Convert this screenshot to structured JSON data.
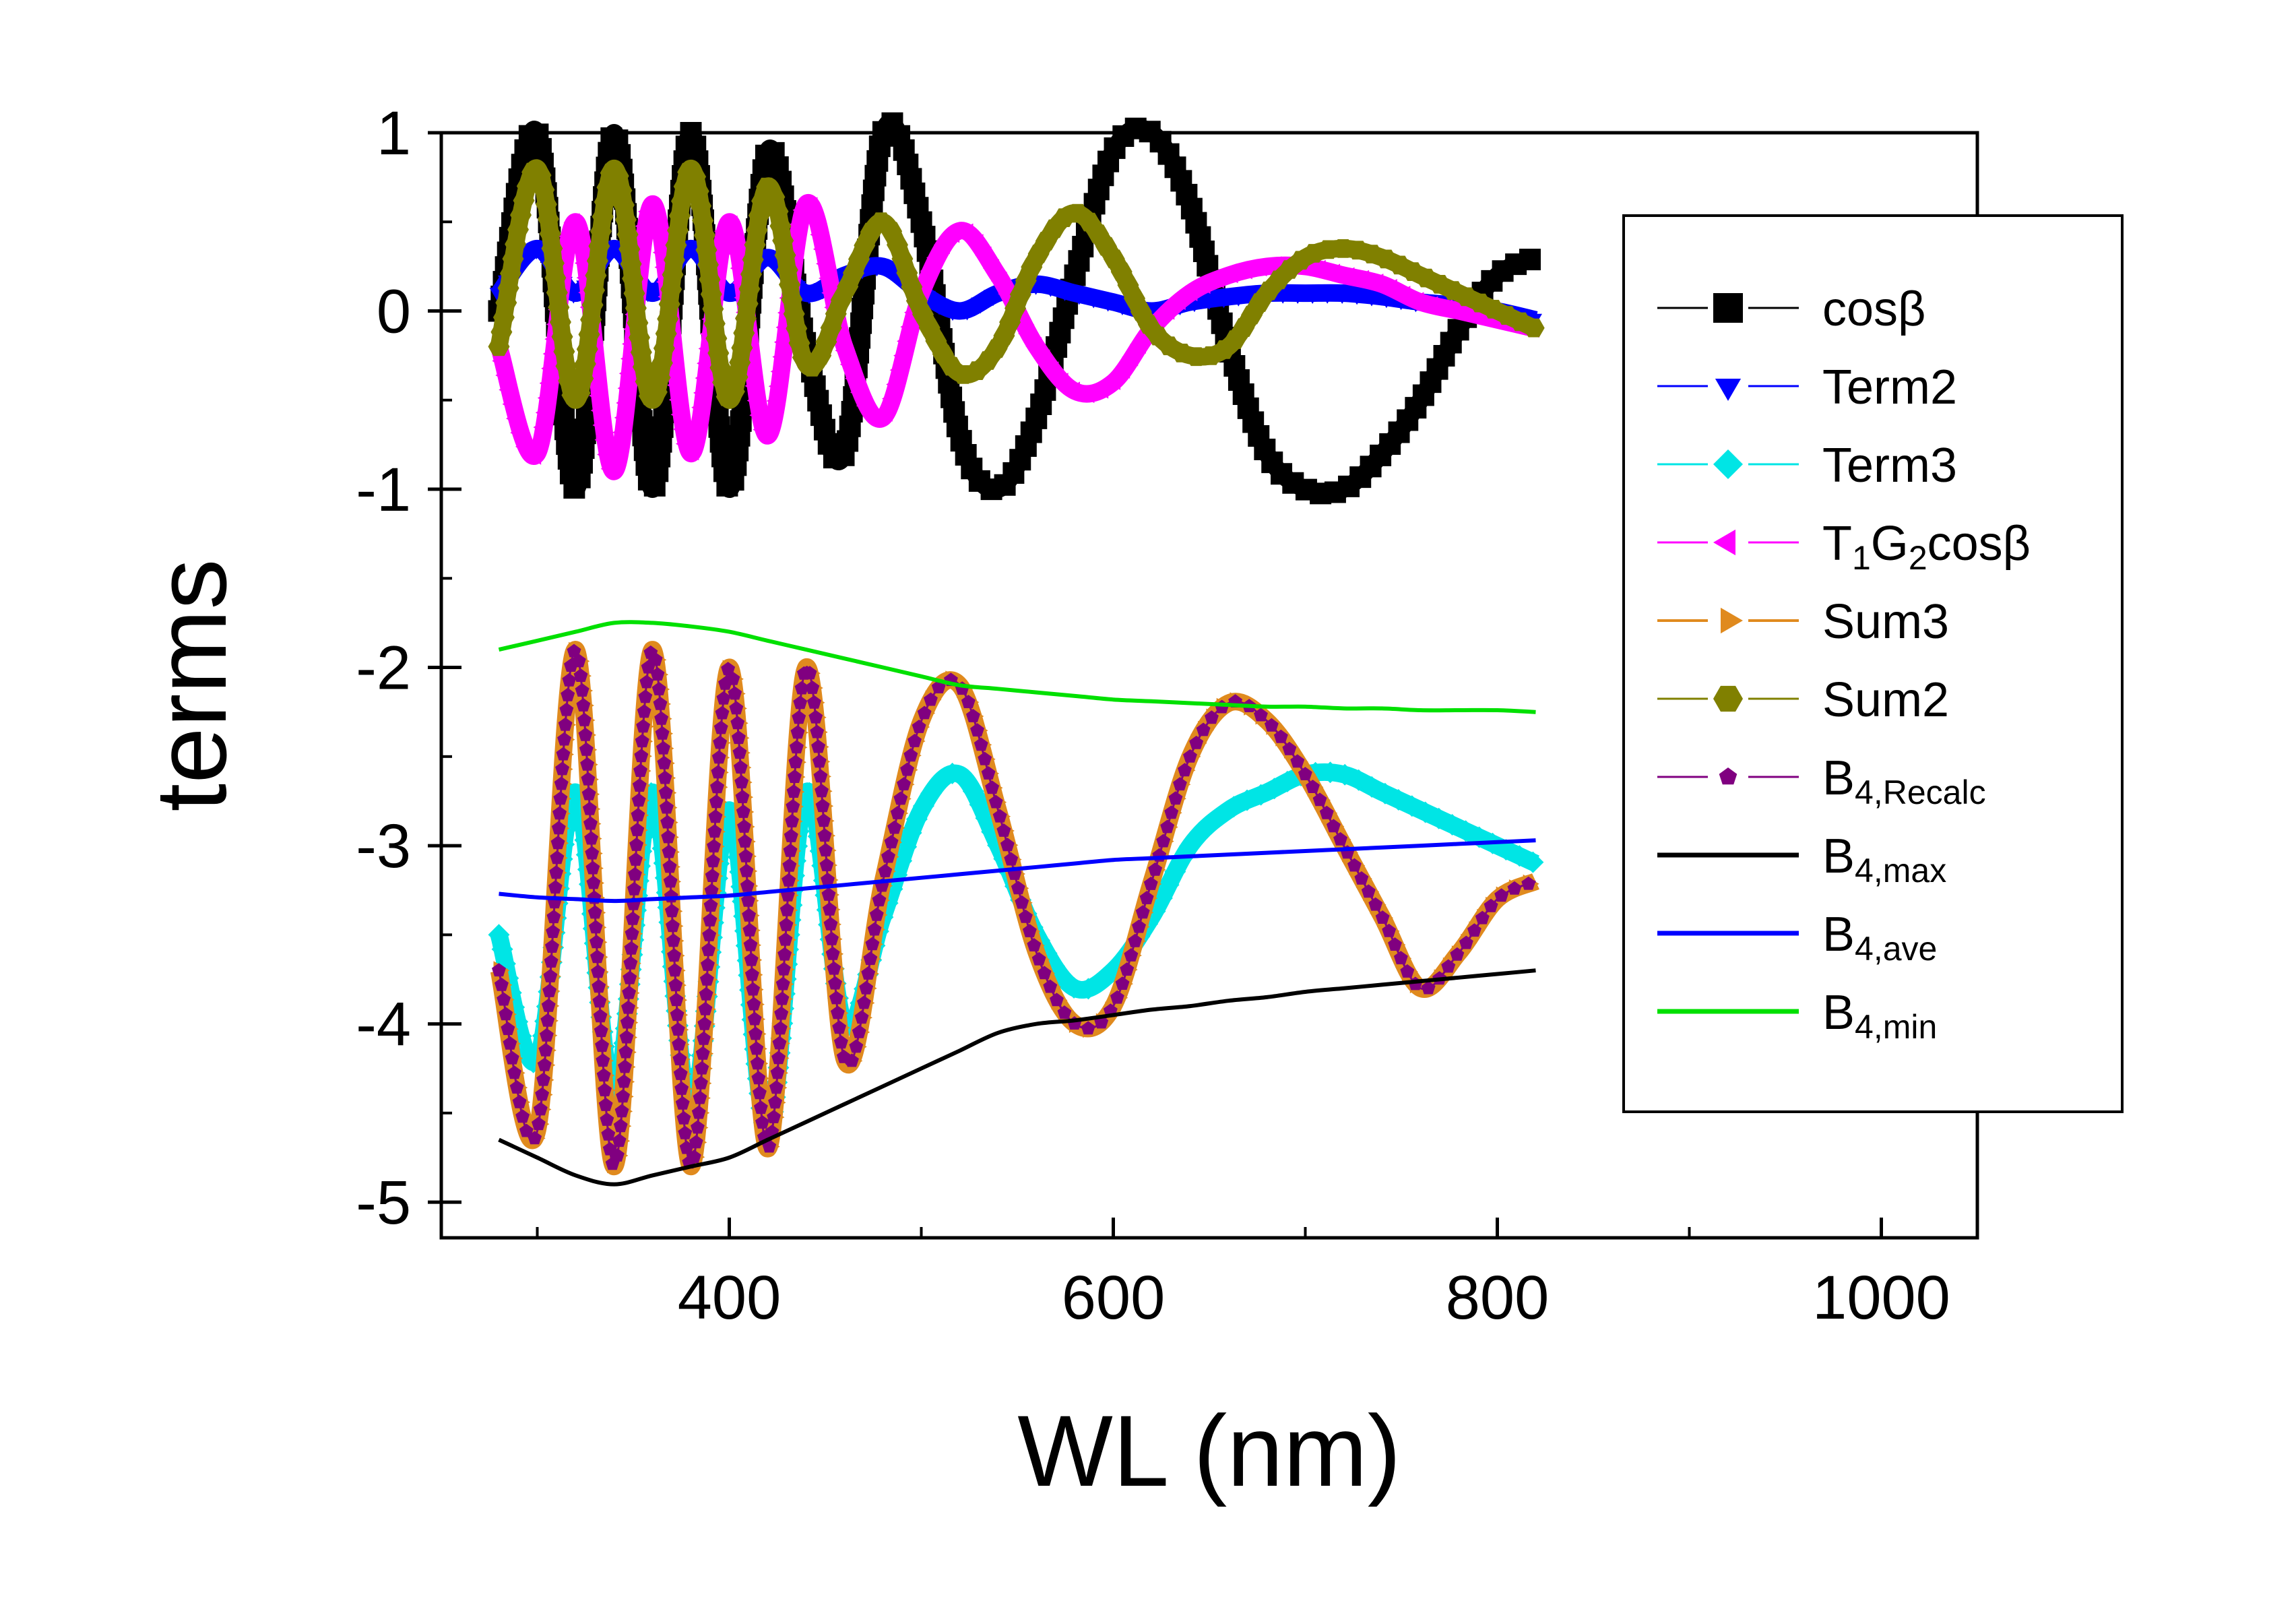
{
  "chart_data": {
    "type": "line",
    "xlabel": "WL  (nm)",
    "ylabel": "terms",
    "xlim": [
      250,
      1050
    ],
    "ylim": [
      -5.2,
      1.0
    ],
    "x_ticks": [
      400,
      600,
      800,
      1000
    ],
    "x_tick_labels": [
      "400",
      "600",
      "800",
      "1000"
    ],
    "y_ticks": [
      1,
      0,
      -1,
      -2,
      -3,
      -4,
      -5
    ],
    "y_tick_labels": [
      "1",
      "0",
      "-1",
      "-2",
      "-3",
      "-4",
      "-5"
    ],
    "grid": false,
    "legend_position": "right",
    "x_points": [
      280,
      300,
      320,
      340,
      360,
      380,
      400,
      420,
      440,
      460,
      480,
      500,
      520,
      540,
      560,
      580,
      600,
      620,
      640,
      660,
      680,
      700,
      720,
      740,
      760,
      780,
      800,
      820
    ],
    "series": [
      {
        "name": "cosβ",
        "label_main": "cosβ",
        "label_sub": "",
        "label_tail": "",
        "color": "#000000",
        "marker": "square",
        "line": "dash",
        "thick": true,
        "values": [
          0.0,
          1.0,
          -1.0,
          1.0,
          -1.0,
          1.0,
          -1.0,
          0.9,
          -0.2,
          -0.8,
          1.0,
          0.5,
          -0.7,
          -1.0,
          -0.6,
          0.2,
          0.9,
          1.0,
          0.6,
          -0.2,
          -0.8,
          -1.0,
          -1.0,
          -0.8,
          -0.5,
          -0.1,
          0.2,
          0.3
        ]
      },
      {
        "name": "Term2",
        "label_main": "Term2",
        "label_sub": "",
        "label_tail": "",
        "color": "#0000ff",
        "marker": "triangle-down",
        "line": "dash",
        "thick": true,
        "values": [
          0.1,
          0.35,
          0.1,
          0.35,
          0.1,
          0.35,
          0.1,
          0.3,
          0.1,
          0.2,
          0.25,
          0.1,
          0.0,
          0.1,
          0.15,
          0.1,
          0.05,
          0.0,
          0.05,
          0.08,
          0.1,
          0.1,
          0.1,
          0.08,
          0.05,
          0.03,
          0.0,
          -0.05
        ]
      },
      {
        "name": "Term3",
        "label_main": "Term3",
        "label_sub": "",
        "label_tail": "",
        "color": "#00e5e5",
        "marker": "diamond",
        "line": "dash",
        "thick": true,
        "values": [
          -3.5,
          -4.2,
          -2.7,
          -4.4,
          -2.7,
          -4.5,
          -2.8,
          -4.6,
          -2.7,
          -4.0,
          -3.4,
          -2.8,
          -2.6,
          -3.0,
          -3.5,
          -3.8,
          -3.7,
          -3.4,
          -3.0,
          -2.8,
          -2.7,
          -2.6,
          -2.6,
          -2.7,
          -2.8,
          -2.9,
          -3.0,
          -3.1
        ]
      },
      {
        "name": "T1G2cosβ",
        "label_main": "T",
        "label_sub": "1",
        "label_tail": "G",
        "label_sub2": "2",
        "label_tail2": "cosβ",
        "color": "#ff00ff",
        "marker": "triangle-left",
        "line": "dash",
        "thick": true,
        "values": [
          -0.2,
          -0.8,
          0.5,
          -0.9,
          0.6,
          -0.8,
          0.5,
          -0.7,
          0.6,
          -0.2,
          -0.6,
          0.1,
          0.45,
          0.2,
          -0.2,
          -0.45,
          -0.4,
          -0.1,
          0.1,
          0.2,
          0.25,
          0.25,
          0.2,
          0.15,
          0.05,
          0.0,
          -0.05,
          -0.1
        ]
      },
      {
        "name": "Sum3",
        "label_main": "Sum3",
        "label_sub": "",
        "label_tail": "",
        "color": "#e08a1e",
        "marker": "triangle-right",
        "line": "solid",
        "thick": true,
        "values": [
          -3.7,
          -4.6,
          -1.9,
          -4.8,
          -1.9,
          -4.8,
          -2.0,
          -4.7,
          -2.0,
          -4.2,
          -3.2,
          -2.3,
          -2.1,
          -2.8,
          -3.6,
          -4.0,
          -3.9,
          -3.2,
          -2.5,
          -2.2,
          -2.3,
          -2.6,
          -3.0,
          -3.4,
          -3.8,
          -3.6,
          -3.3,
          -3.2
        ]
      },
      {
        "name": "Sum2",
        "label_main": "Sum2",
        "label_sub": "",
        "label_tail": "",
        "color": "#808000",
        "marker": "hexagon",
        "line": "solid",
        "thick": true,
        "values": [
          -0.2,
          0.8,
          -0.5,
          0.8,
          -0.5,
          0.8,
          -0.5,
          0.7,
          -0.3,
          0.1,
          0.5,
          0.0,
          -0.35,
          -0.2,
          0.3,
          0.55,
          0.3,
          -0.1,
          -0.25,
          -0.2,
          0.1,
          0.3,
          0.35,
          0.3,
          0.2,
          0.1,
          0.0,
          -0.1
        ]
      },
      {
        "name": "B4,Recalc",
        "label_main": "B",
        "label_sub": "4,Recalc",
        "label_tail": "",
        "color": "#800080",
        "marker": "pentagon",
        "line": "dash",
        "thick": false,
        "values": [
          -3.7,
          -4.6,
          -1.9,
          -4.8,
          -1.9,
          -4.8,
          -2.0,
          -4.7,
          -2.0,
          -4.2,
          -3.2,
          -2.3,
          -2.1,
          -2.8,
          -3.6,
          -4.0,
          -3.9,
          -3.2,
          -2.5,
          -2.2,
          -2.3,
          -2.6,
          -3.0,
          -3.4,
          -3.8,
          -3.6,
          -3.3,
          -3.2
        ]
      },
      {
        "name": "B4,max",
        "label_main": "B",
        "label_sub": "4,max",
        "label_tail": "",
        "color": "#000000",
        "marker": "none",
        "line": "solid",
        "thick": false,
        "values": [
          -4.65,
          -4.75,
          -4.85,
          -4.9,
          -4.85,
          -4.8,
          -4.75,
          -4.65,
          -4.55,
          -4.45,
          -4.35,
          -4.25,
          -4.15,
          -4.05,
          -4.0,
          -3.98,
          -3.95,
          -3.92,
          -3.9,
          -3.87,
          -3.85,
          -3.82,
          -3.8,
          -3.78,
          -3.76,
          -3.74,
          -3.72,
          -3.7
        ]
      },
      {
        "name": "B4,ave",
        "label_main": "B",
        "label_sub": "4,ave",
        "label_tail": "",
        "color": "#0000ff",
        "marker": "none",
        "line": "solid",
        "thick": false,
        "values": [
          -3.27,
          -3.29,
          -3.3,
          -3.31,
          -3.3,
          -3.29,
          -3.28,
          -3.26,
          -3.24,
          -3.22,
          -3.2,
          -3.18,
          -3.16,
          -3.14,
          -3.12,
          -3.1,
          -3.08,
          -3.07,
          -3.06,
          -3.05,
          -3.04,
          -3.03,
          -3.02,
          -3.01,
          -3.0,
          -2.99,
          -2.98,
          -2.97
        ]
      },
      {
        "name": "B4,min",
        "label_main": "B",
        "label_sub": "4,min",
        "label_tail": "",
        "color": "#00e000",
        "marker": "none",
        "line": "solid",
        "thick": false,
        "values": [
          -1.9,
          -1.85,
          -1.8,
          -1.75,
          -1.75,
          -1.77,
          -1.8,
          -1.85,
          -1.9,
          -1.95,
          -2.0,
          -2.05,
          -2.1,
          -2.12,
          -2.14,
          -2.16,
          -2.18,
          -2.19,
          -2.2,
          -2.21,
          -2.22,
          -2.22,
          -2.23,
          -2.23,
          -2.24,
          -2.24,
          -2.24,
          -2.25
        ]
      }
    ]
  }
}
